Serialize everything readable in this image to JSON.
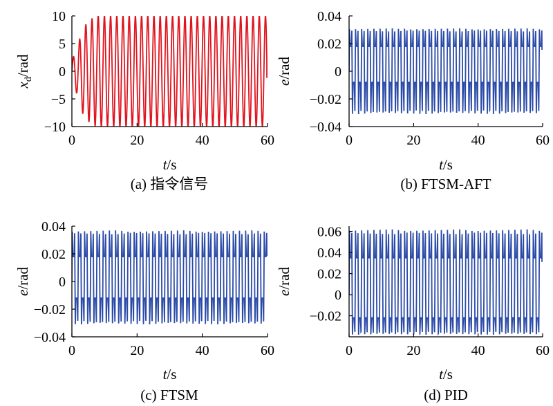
{
  "chart_data": [
    {
      "type": "line",
      "caption": "(a) 指令信号",
      "xlabel_var": "t",
      "xlabel_unit": "/s",
      "ylabel_var": "x",
      "ylabel_sub": "d",
      "ylabel_unit": "/rad",
      "xlim": [
        0,
        60
      ],
      "ylim": [
        -10,
        10
      ],
      "xticks": [
        0,
        20,
        40,
        60
      ],
      "xtick_labels": [
        "0",
        "20",
        "40",
        "60"
      ],
      "yticks": [
        -10,
        -5,
        0,
        5,
        10
      ],
      "ytick_labels": [
        "−10",
        "−5",
        "0",
        "5",
        "10"
      ],
      "grid": false,
      "color": "#e0141e",
      "series": [
        {
          "signal": "sinusoid",
          "x_start": 0,
          "x_end": 59.8,
          "period": 1.9,
          "amplitude_settled": 10,
          "amplitude_ramp": [
            [
              0,
              2
            ],
            [
              1.5,
              4
            ],
            [
              3.2,
              7.5
            ],
            [
              5,
              9
            ],
            [
              7.5,
              10
            ],
            [
              60,
              10
            ]
          ],
          "final_value": -1.2
        }
      ]
    },
    {
      "type": "line",
      "caption": "(b) FTSM-AFT",
      "xlabel_var": "t",
      "xlabel_unit": "/s",
      "ylabel_var": "e",
      "ylabel_sub": "",
      "ylabel_unit": "/rad",
      "xlim": [
        0,
        60
      ],
      "ylim": [
        -0.04,
        0.04
      ],
      "xticks": [
        0,
        20,
        40,
        60
      ],
      "xtick_labels": [
        "0",
        "20",
        "40",
        "60"
      ],
      "yticks": [
        -0.04,
        -0.02,
        0,
        0.02,
        0.04
      ],
      "ytick_labels": [
        "−0.04",
        "−0.02",
        "0",
        "0.02",
        "0.04"
      ],
      "grid": false,
      "color": "#2b4ba8",
      "series": [
        {
          "signal": "oscillating_error",
          "x_start": 0,
          "x_end": 59.8,
          "period": 1.9,
          "upper_peak": 0.031,
          "upper_shoulder": 0.018,
          "lower_peak": -0.031,
          "lower_shoulder": -0.008
        }
      ]
    },
    {
      "type": "line",
      "caption": "(c) FTSM",
      "xlabel_var": "t",
      "xlabel_unit": "/s",
      "ylabel_var": "e",
      "ylabel_sub": "",
      "ylabel_unit": "/rad",
      "xlim": [
        0,
        60
      ],
      "ylim": [
        -0.04,
        0.04
      ],
      "xticks": [
        0,
        20,
        40,
        60
      ],
      "xtick_labels": [
        "0",
        "20",
        "40",
        "60"
      ],
      "yticks": [
        -0.04,
        -0.02,
        0,
        0.02,
        0.04
      ],
      "ytick_labels": [
        "−0.04",
        "−0.02",
        "0",
        "0.02",
        "0.04"
      ],
      "grid": false,
      "color": "#2b4ba8",
      "series": [
        {
          "signal": "oscillating_error",
          "x_start": 0,
          "x_end": 59.8,
          "period": 1.9,
          "upper_peak": 0.037,
          "upper_shoulder": 0.018,
          "lower_peak": -0.031,
          "lower_shoulder": -0.012
        }
      ]
    },
    {
      "type": "line",
      "caption": "(d) PID",
      "xlabel_var": "t",
      "xlabel_unit": "/s",
      "ylabel_var": "e",
      "ylabel_sub": "",
      "ylabel_unit": "/rad",
      "xlim": [
        0,
        60
      ],
      "ylim": [
        -0.04,
        0.065
      ],
      "xticks": [
        0,
        20,
        40,
        60
      ],
      "xtick_labels": [
        "0",
        "20",
        "40",
        "60"
      ],
      "yticks": [
        -0.02,
        0,
        0.02,
        0.04,
        0.06
      ],
      "ytick_labels": [
        "−0.02",
        "0",
        "0.02",
        "0.04",
        "0.06"
      ],
      "grid": false,
      "color": "#2b4ba8",
      "series": [
        {
          "signal": "oscillating_error",
          "x_start": 0,
          "x_end": 59.8,
          "period": 1.9,
          "upper_peak": 0.062,
          "upper_shoulder": 0.035,
          "lower_peak": -0.038,
          "lower_shoulder": -0.022
        }
      ]
    }
  ]
}
